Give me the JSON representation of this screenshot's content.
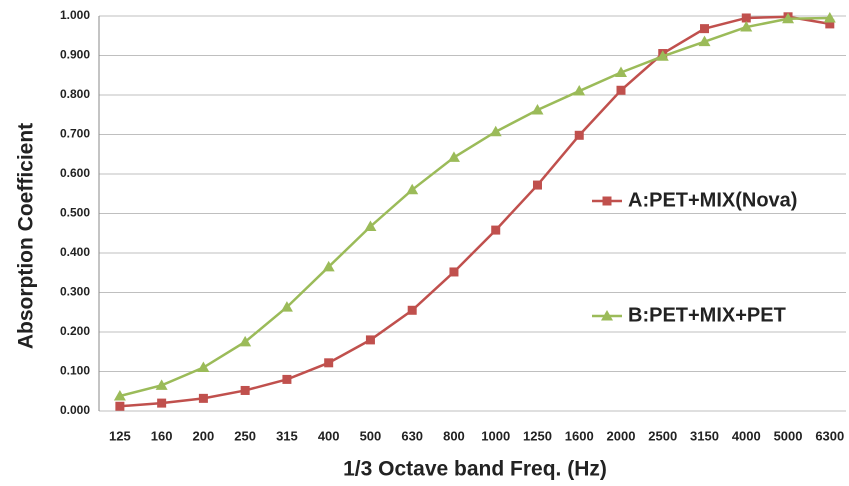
{
  "chart_data": {
    "type": "line",
    "x_label": "1/3 Octave band Freq. (Hz)",
    "y_label": "Absorption Coefficient",
    "categories": [
      "125",
      "160",
      "200",
      "250",
      "315",
      "400",
      "500",
      "630",
      "800",
      "1000",
      "1250",
      "1600",
      "2000",
      "2500",
      "3150",
      "4000",
      "5000",
      "6300"
    ],
    "series": [
      {
        "name": "A:PET+MIX(Nova)",
        "color": "#c0504d",
        "marker": "square",
        "values": [
          0.012,
          0.02,
          0.032,
          0.052,
          0.08,
          0.122,
          0.18,
          0.255,
          0.352,
          0.458,
          0.572,
          0.698,
          0.812,
          0.905,
          0.968,
          0.995,
          0.998,
          0.98
        ]
      },
      {
        "name": "B:PET+MIX+PET",
        "color": "#9bbb59",
        "marker": "triangle",
        "values": [
          0.038,
          0.065,
          0.11,
          0.175,
          0.263,
          0.365,
          0.467,
          0.56,
          0.642,
          0.707,
          0.762,
          0.81,
          0.857,
          0.898,
          0.935,
          0.972,
          0.993,
          0.995
        ]
      }
    ],
    "ylim": [
      0,
      1
    ],
    "yticks": [
      {
        "value": 0,
        "label": "0.000"
      },
      {
        "value": 0.1,
        "label": "0.100"
      },
      {
        "value": 0.2,
        "label": "0.200"
      },
      {
        "value": 0.3,
        "label": "0.300"
      },
      {
        "value": 0.4,
        "label": "0.400"
      },
      {
        "value": 0.5,
        "label": "0.500"
      },
      {
        "value": 0.6,
        "label": "0.600"
      },
      {
        "value": 0.7,
        "label": "0.700"
      },
      {
        "value": 0.8,
        "label": "0.800"
      },
      {
        "value": 0.9,
        "label": "0.900"
      },
      {
        "value": 1,
        "label": "1.000"
      }
    ],
    "grid": true,
    "legend": "right"
  }
}
